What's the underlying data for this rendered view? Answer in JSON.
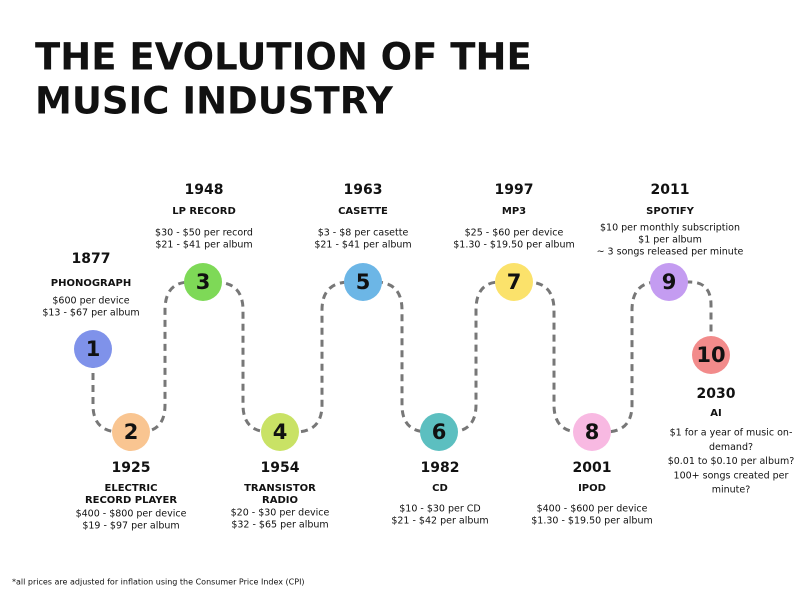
{
  "header": {
    "title": [
      "THE EVOLUTION OF THE",
      "MUSIC INDUSTRY"
    ]
  },
  "nodes": [
    {
      "number": "1",
      "year": "1877",
      "name": [
        "PHONOGRAPH"
      ],
      "details": [
        "$600 per device",
        "$13 - $67 per album"
      ]
    },
    {
      "number": "2",
      "year": "1925",
      "name": [
        "ELECTRIC",
        "RECORD PLAYER"
      ],
      "details": [
        "$400 - $800 per device",
        "$19 - $97 per album"
      ]
    },
    {
      "number": "3",
      "year": "1948",
      "name": [
        "LP RECORD"
      ],
      "details": [
        "$30 - $50 per record",
        "$21 - $41 per album"
      ]
    },
    {
      "number": "4",
      "year": "1954",
      "name": [
        "TRANSISTOR",
        "RADIO"
      ],
      "details": [
        "$20 - $30 per device",
        "$32 - $65 per album"
      ]
    },
    {
      "number": "5",
      "year": "1963",
      "name": [
        "CASETTE"
      ],
      "details": [
        "$3 - $8 per casette",
        "$21 - $41 per album"
      ]
    },
    {
      "number": "6",
      "year": "1982",
      "name": [
        "CD"
      ],
      "details": [
        "$10 - $30 per CD",
        "$21 - $42 per album"
      ]
    },
    {
      "number": "7",
      "year": "1997",
      "name": [
        "MP3"
      ],
      "details": [
        "$25 - $60 per device",
        "$1.30 - $19.50 per album"
      ]
    },
    {
      "number": "8",
      "year": "2001",
      "name": [
        "IPOD"
      ],
      "details": [
        "$400 - $600 per device",
        "$1.30 - $19.50 per album"
      ]
    },
    {
      "number": "9",
      "year": "2011",
      "name": [
        "SPOTIFY"
      ],
      "details": [
        "$10 per monthly subscription",
        "$1 per album",
        "~ 3 songs released per minute"
      ]
    },
    {
      "number": "10",
      "year": "2030",
      "name": [
        "AI"
      ],
      "details": [
        "$1 for a year of music on-",
        "demand?",
        "$0.01 to $0.10 per album?",
        "100+ songs created per",
        "minute?"
      ]
    }
  ],
  "footnote": "*all prices are adjusted for inflation using the Consumer Price Index (CPI)"
}
